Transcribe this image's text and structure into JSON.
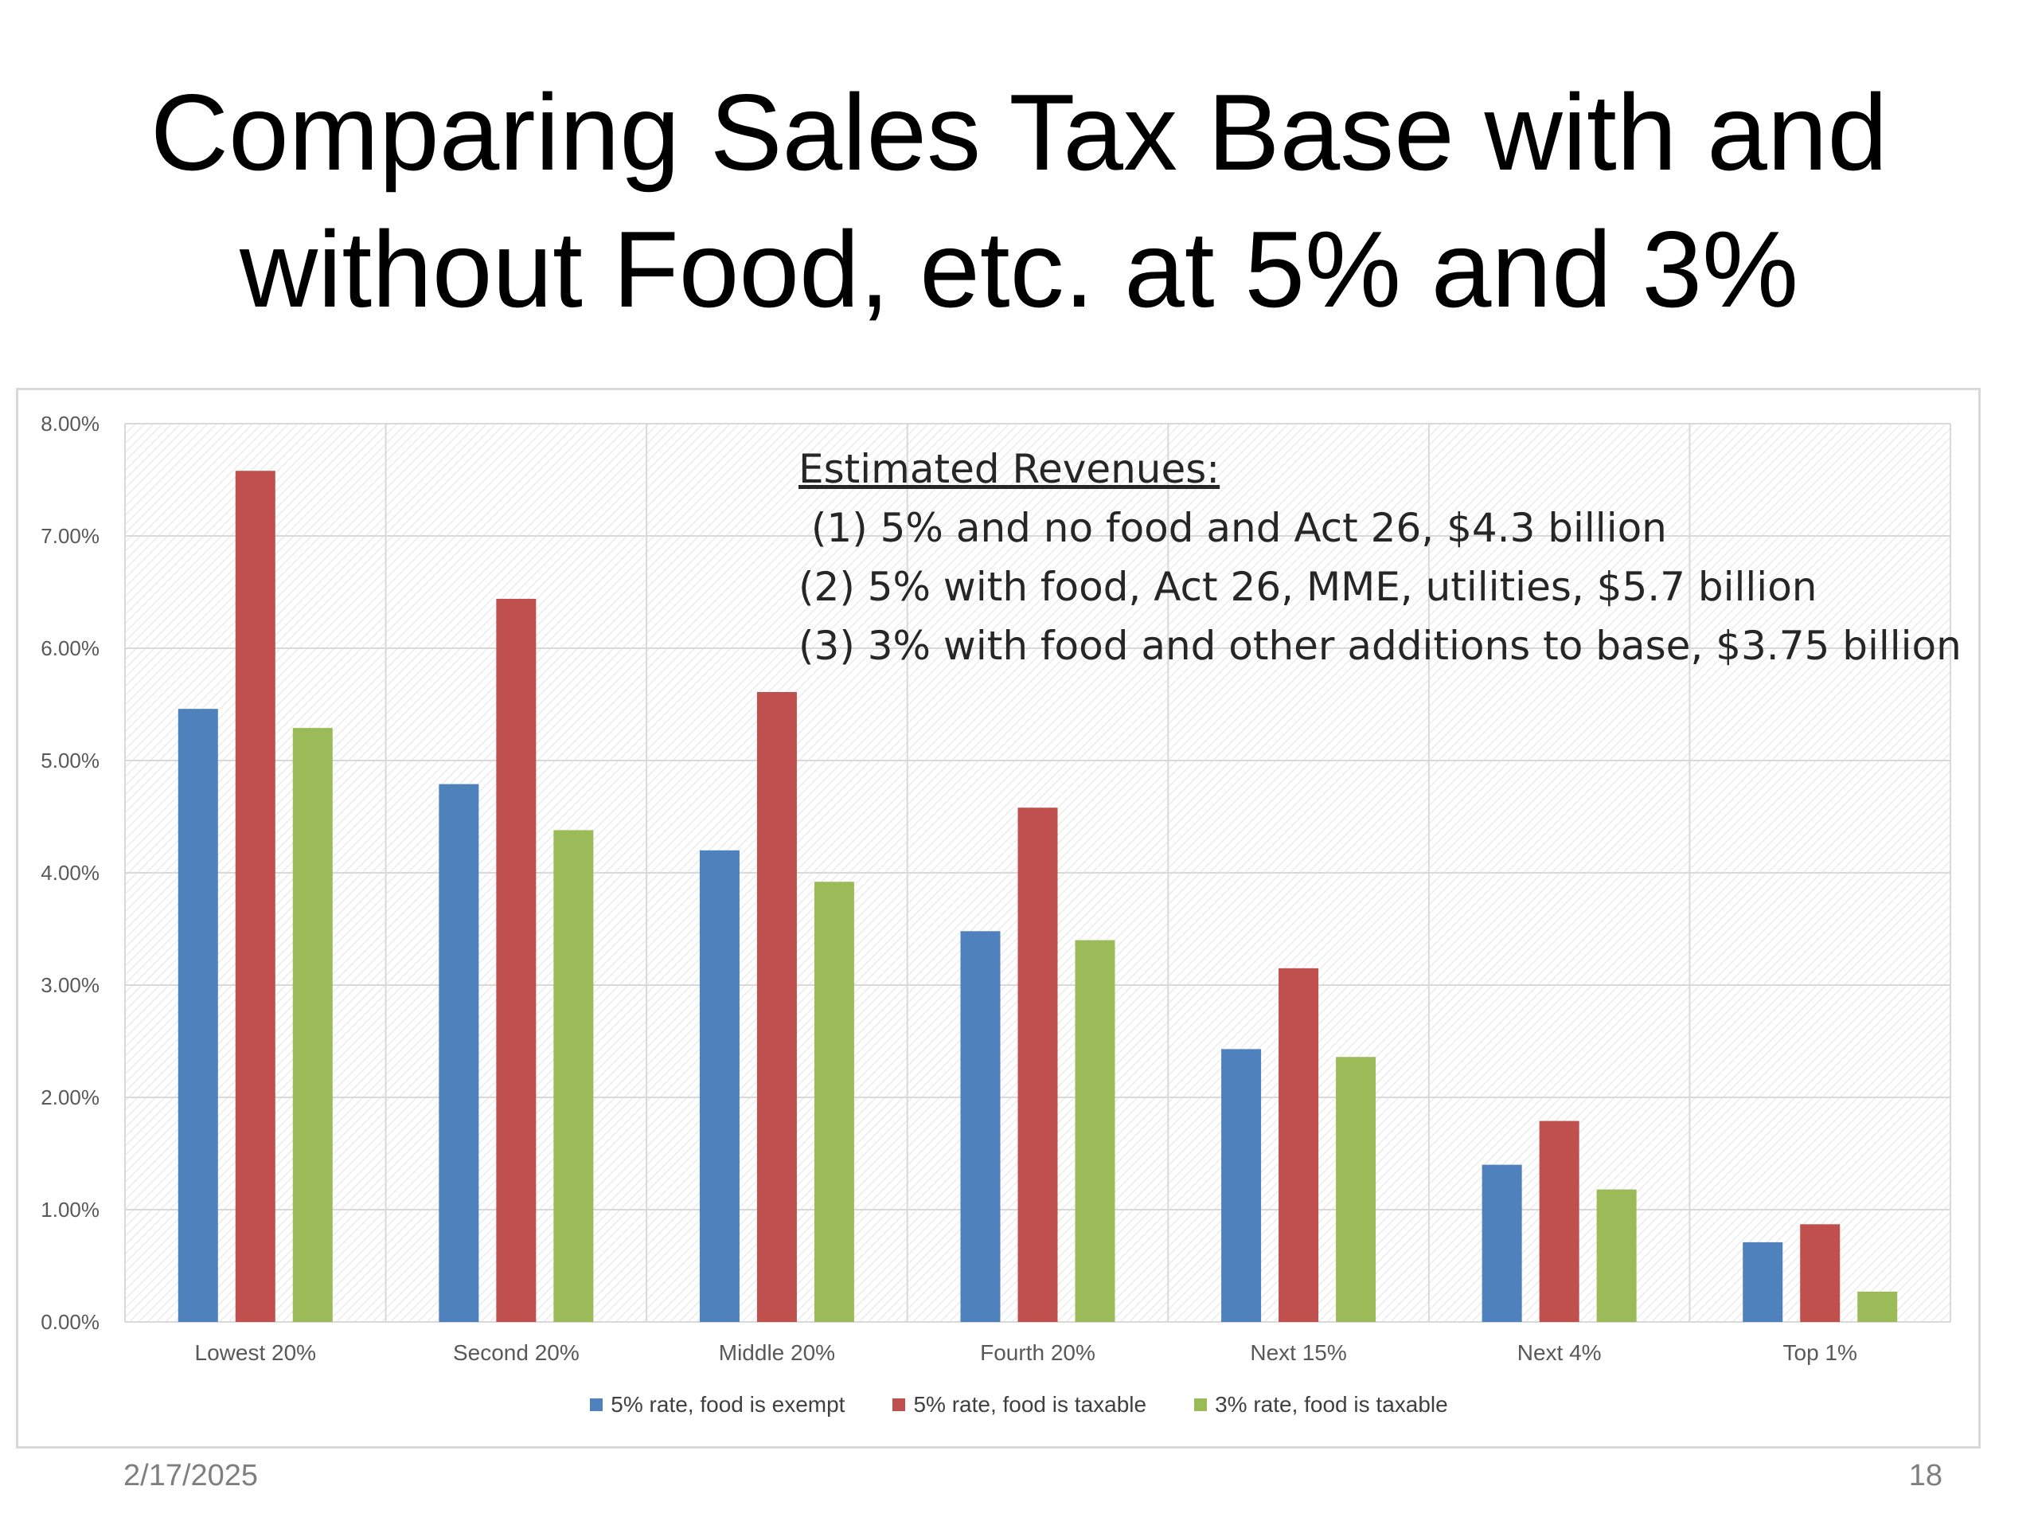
{
  "slide": {
    "title_line1": "Comparing Sales Tax Base with and",
    "title_line2": "without Food, etc. at 5% and 3%",
    "date": "2/17/2025",
    "page_number": "18"
  },
  "annotation": {
    "heading": "Estimated Revenues:",
    "lines": [
      " (1) 5% and no food and Act 26, $4.3 billion",
      "(2) 5% with food, Act 26, MME, utilities, $5.7 billion",
      "(3) 3% with food and other additions to base, $3.75 billion"
    ]
  },
  "chart_data": {
    "type": "bar",
    "categories": [
      "Lowest 20%",
      "Second 20%",
      "Middle 20%",
      "Fourth 20%",
      "Next 15%",
      "Next 4%",
      "Top 1%"
    ],
    "series": [
      {
        "name": "5% rate, food is exempt",
        "color": "#4f81bd",
        "values": [
          5.46,
          4.79,
          4.2,
          3.48,
          2.43,
          1.4,
          0.71
        ]
      },
      {
        "name": "5% rate, food is taxable",
        "color": "#c0504d",
        "values": [
          7.58,
          6.44,
          5.61,
          4.58,
          3.15,
          1.79,
          0.87
        ]
      },
      {
        "name": "3% rate, food is taxable",
        "color": "#9bbb59",
        "values": [
          5.29,
          4.38,
          3.92,
          3.4,
          2.36,
          1.18,
          0.27
        ]
      }
    ],
    "ylim": [
      0,
      8
    ],
    "yticks": [
      "0.00%",
      "1.00%",
      "2.00%",
      "3.00%",
      "4.00%",
      "5.00%",
      "6.00%",
      "7.00%",
      "8.00%"
    ],
    "grid": true,
    "legend_position": "bottom"
  }
}
